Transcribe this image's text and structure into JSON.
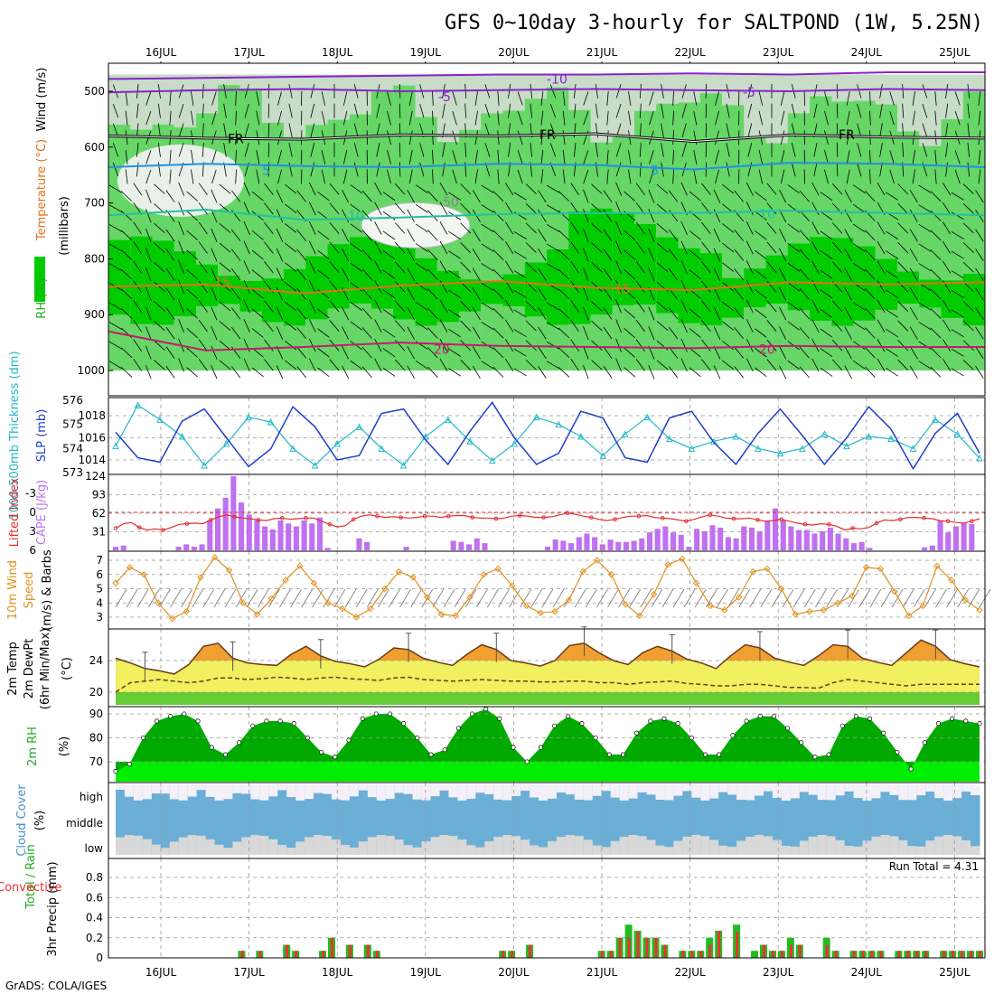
{
  "title": "GFS 0~10day 3-hourly for SALTPOND (1W, 5.25N)",
  "footer": "GrADS: COLA/IGES",
  "run_total": "Run Total = 4.31",
  "dates": [
    "16JUL",
    "17JUL",
    "18JUL",
    "19JUL",
    "20JUL",
    "21JUL",
    "22JUL",
    "23JUL",
    "24JUL",
    "25JUL"
  ],
  "colors": {
    "rh_dark": "#00cc00",
    "rh_mid": "#66d666",
    "rh_light": "#c8dcc8",
    "slp": "#1f3fc8",
    "thickness": "#22b8c8",
    "cape": "#c070f0",
    "lifted_index": "#e03030",
    "wind10m": "#e09020",
    "temp_band": "#f0f060",
    "temp_peak": "#f0a030",
    "dewpoint": "#66cc33",
    "rh2m": "#00aa00",
    "cloud": "#6baed6",
    "precip_total": "#22bb22",
    "precip_conv": "#ee3030"
  },
  "chart_data": [
    {
      "type": "heatmap",
      "panel": "upper-air",
      "ylabel_rh": "RH (%)",
      "ylabel_temp": "Temperature (°C)",
      "ylabel_wind": "Wind (m/s)",
      "ylabel_units": "(millibars)",
      "yticks": [
        500,
        600,
        700,
        800,
        900,
        1000
      ],
      "contour_labels": {
        "temp_minus10": "-10",
        "temp_minus5": "-5",
        "freezing": "FR",
        "temp5": "5",
        "temp10": "10",
        "temp15": "15",
        "temp20": "20",
        "rh50": "50"
      },
      "isotherms": [
        {
          "name": "-10",
          "color": "#8a22c8",
          "level_mb": [
            478,
            476,
            474,
            472,
            470,
            470,
            468,
            470,
            466,
            466
          ]
        },
        {
          "name": "-5",
          "color": "#8a22c8",
          "level_mb": [
            502,
            498,
            496,
            500,
            498,
            496,
            498,
            500,
            496,
            498
          ]
        },
        {
          "name": "FR",
          "color": "#000000",
          "level_mb": [
            580,
            584,
            586,
            578,
            580,
            576,
            590,
            578,
            582,
            584
          ]
        },
        {
          "name": "5",
          "color": "#2290e0",
          "level_mb": [
            636,
            630,
            634,
            636,
            630,
            632,
            640,
            628,
            630,
            636
          ]
        },
        {
          "name": "10",
          "color": "#22c0a0",
          "level_mb": [
            722,
            712,
            730,
            726,
            720,
            718,
            718,
            714,
            718,
            722
          ]
        },
        {
          "name": "15",
          "color": "#e07020",
          "level_mb": [
            850,
            846,
            862,
            848,
            840,
            852,
            856,
            842,
            846,
            842
          ]
        },
        {
          "name": "20",
          "color": "#c81870",
          "level_mb": [
            930,
            964,
            958,
            950,
            956,
            958,
            960,
            956,
            958,
            958
          ]
        }
      ]
    },
    {
      "type": "line",
      "panel": "slp-thickness",
      "ylabel_left": "1000-500mb Thickness (dm)",
      "ylabel_right": "SLP (mb)",
      "yticks_left": [
        573,
        574,
        575,
        576
      ],
      "yticks_right": [
        1014,
        1016,
        1018
      ],
      "series": [
        {
          "name": "SLP (mb)",
          "values": [
            1016.5,
            1014.2,
            1013.8,
            1017.5,
            1018.6,
            1016.0,
            1013.4,
            1015.0,
            1018.8,
            1017.0,
            1014.0,
            1014.4,
            1018.2,
            1018.6,
            1015.8,
            1013.6,
            1016.6,
            1019.2,
            1016.0,
            1013.6,
            1014.6,
            1018.4,
            1017.8,
            1014.2,
            1013.8,
            1017.8,
            1018.4,
            1015.6,
            1013.6,
            1016.4,
            1018.6,
            1016.2,
            1013.6,
            1016.0,
            1018.8,
            1016.8,
            1013.2,
            1016.4,
            1018.2,
            1014.6
          ]
        },
        {
          "name": "1000-500mb Thickness (dm)",
          "values": [
            574.1,
            575.8,
            575.2,
            574.5,
            573.3,
            574.2,
            575.3,
            575.1,
            574.0,
            573.3,
            574.2,
            574.9,
            574.0,
            573.3,
            574.5,
            575.2,
            574.3,
            573.5,
            574.2,
            575.3,
            575.0,
            574.5,
            573.7,
            574.6,
            575.3,
            574.4,
            574.0,
            574.3,
            574.5,
            574.0,
            573.8,
            574.0,
            574.6,
            574.1,
            574.5,
            574.4,
            574.0,
            575.2,
            574.6,
            573.6
          ]
        }
      ]
    },
    {
      "type": "bar",
      "panel": "cape-li",
      "ylabel_left": "Lifted Index",
      "ylabel_right": "CAPE (J/kg)",
      "yticks_left": [
        -3,
        0,
        3,
        6
      ],
      "yticks_right": [
        31,
        62,
        93,
        124
      ],
      "series": [
        {
          "name": "CAPE (J/kg)",
          "values": [
            6,
            8,
            0,
            0,
            0,
            0,
            0,
            0,
            6,
            10,
            6,
            10,
            50,
            70,
            88,
            124,
            80,
            60,
            50,
            40,
            35,
            50,
            45,
            40,
            50,
            45,
            55,
            4,
            0,
            0,
            0,
            20,
            14,
            0,
            0,
            0,
            0,
            6,
            0,
            0,
            0,
            0,
            0,
            16,
            14,
            10,
            20,
            12,
            0,
            0,
            0,
            0,
            0,
            0,
            0,
            6,
            18,
            16,
            12,
            22,
            28,
            22,
            10,
            18,
            14,
            14,
            16,
            20,
            30,
            36,
            40,
            30,
            26,
            6,
            36,
            32,
            42,
            38,
            22,
            20,
            40,
            38,
            32,
            50,
            70,
            50,
            40,
            34,
            34,
            28,
            32,
            38,
            28,
            20,
            12,
            14,
            4,
            0,
            0,
            0,
            0,
            0,
            0,
            5,
            8,
            50,
            30,
            40,
            46,
            44
          ]
        },
        {
          "name": "Lifted Index",
          "values": [
            2.5,
            1.8,
            1.6,
            2.4,
            2.8,
            2.6,
            2.8,
            2.4,
            1.9,
            1.8,
            1.7,
            1.8,
            1.2,
            0.7,
            0.4,
            0.7,
            0.9,
            1.0,
            1.2,
            1.3,
            1.0,
            0.9,
            1.1,
            1.0,
            0.9,
            0.9,
            1.4,
            1.9,
            2.3,
            2.1,
            1.1,
            0.6,
            0.4,
            0.6,
            0.8,
            0.7,
            0.8,
            0.9,
            0.8,
            0.6,
            0.6,
            0.8,
            0.6,
            0.5,
            0.5,
            0.8,
            0.9,
            0.9,
            1.0,
            0.9,
            0.6,
            0.5,
            0.6,
            0.8,
            0.8,
            0.7,
            0.4,
            0.1,
            0.3,
            0.6,
            0.8,
            1.1,
            1.3,
            1.1,
            0.8,
            0.6,
            0.6,
            0.5,
            0.8,
            0.9,
            1.0,
            1.2,
            1.4,
            1.1,
            0.7,
            0.4,
            0.6,
            0.9,
            1.0,
            1.0,
            0.9,
            1.2,
            1.4,
            1.3,
            1.1,
            1.4,
            1.7,
            1.9,
            2.0,
            1.8,
            1.9,
            2.2,
            2.8,
            2.5,
            2.6,
            2.4,
            1.7,
            1.2,
            1.3,
            1.1,
            0.8,
            0.8,
            0.9,
            1.0,
            1.3,
            1.4,
            1.6,
            1.7,
            1.4,
            1.0
          ]
        }
      ]
    },
    {
      "type": "line",
      "panel": "wind10m",
      "ylabel_main": "10m Wind",
      "ylabel_sub": "Speed",
      "ylabel_units": "(m/s) & Barbs",
      "yticks": [
        3,
        4,
        5,
        6,
        7
      ],
      "series": [
        {
          "name": "10m Wind Speed",
          "values": [
            5.4,
            6.5,
            6.0,
            4.0,
            2.9,
            3.4,
            5.8,
            7.2,
            6.3,
            4.0,
            3.2,
            4.3,
            5.6,
            6.6,
            5.4,
            4.0,
            3.6,
            3.0,
            3.6,
            5.0,
            6.2,
            5.8,
            4.4,
            3.2,
            3.1,
            4.4,
            6.0,
            6.4,
            5.2,
            3.8,
            3.3,
            3.4,
            4.2,
            6.2,
            7.0,
            6.0,
            3.9,
            3.1,
            4.6,
            6.7,
            7.1,
            5.4,
            3.8,
            3.5,
            4.4,
            6.2,
            6.4,
            5.0,
            3.2,
            3.4,
            3.5,
            4.0,
            4.5,
            6.5,
            6.4,
            4.8,
            3.1,
            3.8,
            6.6,
            5.6,
            4.2,
            3.5
          ]
        }
      ]
    },
    {
      "type": "area",
      "panel": "temp2m",
      "ylabel_main": "2m Temp",
      "ylabel_dew": "2m DewPt",
      "ylabel_sub": "(6hr Min/Max)",
      "ylabel_units": "(°C)",
      "yticks": [
        20,
        24
      ],
      "series": [
        {
          "name": "2m Temp",
          "values": [
            24.3,
            23.7,
            23.0,
            22.7,
            22.3,
            23.5,
            25.8,
            26.2,
            24.3,
            23.7,
            23.5,
            23.4,
            24.8,
            25.8,
            24.6,
            23.9,
            23.6,
            23.2,
            24.2,
            25.6,
            25.4,
            24.3,
            23.8,
            23.4,
            24.8,
            26.0,
            25.4,
            24.0,
            23.7,
            23.3,
            24.0,
            25.9,
            26.2,
            25.0,
            24.0,
            23.5,
            25.0,
            25.8,
            25.2,
            24.2,
            23.7,
            23.0,
            24.6,
            26.0,
            25.6,
            24.3,
            23.8,
            23.4,
            24.6,
            26.0,
            25.8,
            24.3,
            23.8,
            23.4,
            25.0,
            26.6,
            25.8,
            24.1,
            23.6,
            23.2
          ]
        },
        {
          "name": "2m DewPt",
          "values": [
            20.0,
            21.2,
            21.4,
            21.6,
            21.4,
            21.2,
            21.4,
            21.8,
            21.8,
            21.6,
            21.7,
            21.9,
            21.8,
            21.6,
            21.8,
            21.9,
            21.7,
            21.6,
            21.5,
            21.8,
            21.9,
            21.6,
            21.5,
            21.4,
            21.5,
            21.6,
            21.5,
            21.4,
            21.4,
            21.3,
            21.3,
            21.4,
            21.4,
            21.2,
            21.2,
            21.0,
            21.2,
            21.3,
            21.4,
            21.1,
            21.0,
            20.8,
            20.8,
            21.0,
            21.0,
            20.8,
            20.6,
            20.6,
            20.5,
            21.2,
            21.6,
            21.4,
            21.2,
            21.0,
            20.8,
            21.0,
            21.0,
            21.0,
            21.0,
            21.0
          ]
        }
      ]
    },
    {
      "type": "area",
      "panel": "rh2m",
      "ylabel": "2m RH",
      "ylabel_units": "(%)",
      "yticks": [
        70,
        80,
        90
      ],
      "series": [
        {
          "name": "2m RH",
          "values": [
            66,
            69,
            80,
            87,
            89,
            90,
            87,
            76,
            73,
            78,
            85,
            87,
            87,
            86,
            80,
            74,
            72,
            79,
            88,
            90,
            90,
            86,
            80,
            73,
            75,
            84,
            90,
            92,
            88,
            76,
            70,
            76,
            85,
            89,
            86,
            80,
            73,
            73,
            82,
            87,
            88,
            86,
            80,
            73,
            73,
            81,
            87,
            89,
            89,
            84,
            78,
            72,
            73,
            85,
            89,
            88,
            82,
            74,
            67,
            78,
            86,
            88,
            87,
            86
          ]
        }
      ]
    },
    {
      "type": "area",
      "panel": "cloud-cover",
      "ylabel": "Cloud Cover",
      "ylabel_units": "(%)",
      "layers": [
        "high",
        "middle",
        "low"
      ]
    },
    {
      "type": "bar",
      "panel": "precip",
      "ylabel_total": "Total",
      "ylabel_sep": " / Rain",
      "ylabel_conv": "Convective",
      "ylabel_units": "3hr Precip (mm)",
      "yticks": [
        0,
        0.2,
        0.4,
        0.6,
        0.8
      ],
      "categories_index": [
        14,
        16,
        19,
        20,
        23,
        24,
        26,
        28,
        29,
        43,
        44,
        46,
        54,
        55,
        56,
        57,
        58,
        59,
        60,
        61,
        63,
        64,
        65,
        66,
        67,
        69,
        71,
        72,
        73,
        74,
        75,
        76,
        79,
        80,
        82,
        83,
        84,
        85,
        87,
        88,
        89,
        90,
        92,
        93,
        94,
        95,
        96
      ],
      "series": [
        {
          "name": "Total",
          "values": [
            0.07,
            0.07,
            0.13,
            0.07,
            0.07,
            0.2,
            0.13,
            0.13,
            0.07,
            0.07,
            0.07,
            0.13,
            0.07,
            0.07,
            0.2,
            0.33,
            0.27,
            0.2,
            0.2,
            0.13,
            0.07,
            0.07,
            0.07,
            0.2,
            0.27,
            0.33,
            0.07,
            0.13,
            0.07,
            0.07,
            0.2,
            0.13,
            0.2,
            0.07,
            0.07,
            0.07,
            0.07,
            0.07,
            0.07,
            0.07,
            0.07,
            0.07,
            0.07,
            0.07,
            0.07,
            0.07,
            0.07
          ]
        },
        {
          "name": "Convective",
          "values": [
            0.07,
            0.07,
            0.13,
            0.07,
            0.07,
            0.2,
            0.13,
            0.13,
            0.07,
            0.07,
            0.07,
            0.13,
            0.07,
            0.07,
            0.2,
            0.2,
            0.26,
            0.2,
            0.2,
            0.13,
            0.07,
            0.07,
            0.07,
            0.13,
            0.27,
            0.26,
            0.0,
            0.13,
            0.07,
            0.07,
            0.13,
            0.13,
            0.13,
            0.07,
            0.07,
            0.07,
            0.07,
            0.07,
            0.07,
            0.07,
            0.07,
            0.07,
            0.07,
            0.07,
            0.07,
            0.07,
            0.07
          ]
        }
      ]
    }
  ]
}
